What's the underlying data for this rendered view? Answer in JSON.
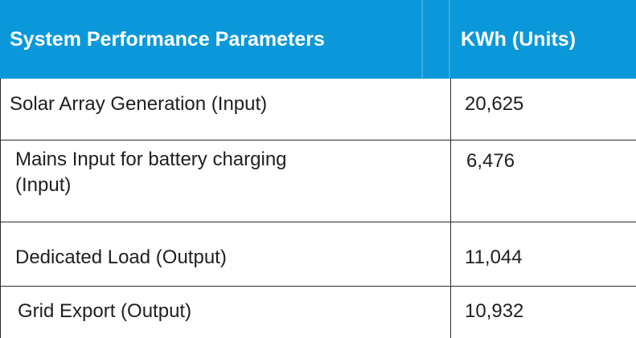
{
  "header": {
    "parameter_label": "System Performance Parameters",
    "units_label": "KWh (Units)",
    "background": "#0a98da",
    "text_color": "#ffffff"
  },
  "rows": [
    {
      "parameter": "Solar Array Generation (Input)",
      "value": "20,625"
    },
    {
      "parameter": "Mains Input for battery charging\n(Input)",
      "value": "6,476"
    },
    {
      "parameter": "Dedicated Load (Output)",
      "value": "11,044"
    },
    {
      "parameter": "Grid Export (Output)",
      "value": "10,932"
    }
  ]
}
